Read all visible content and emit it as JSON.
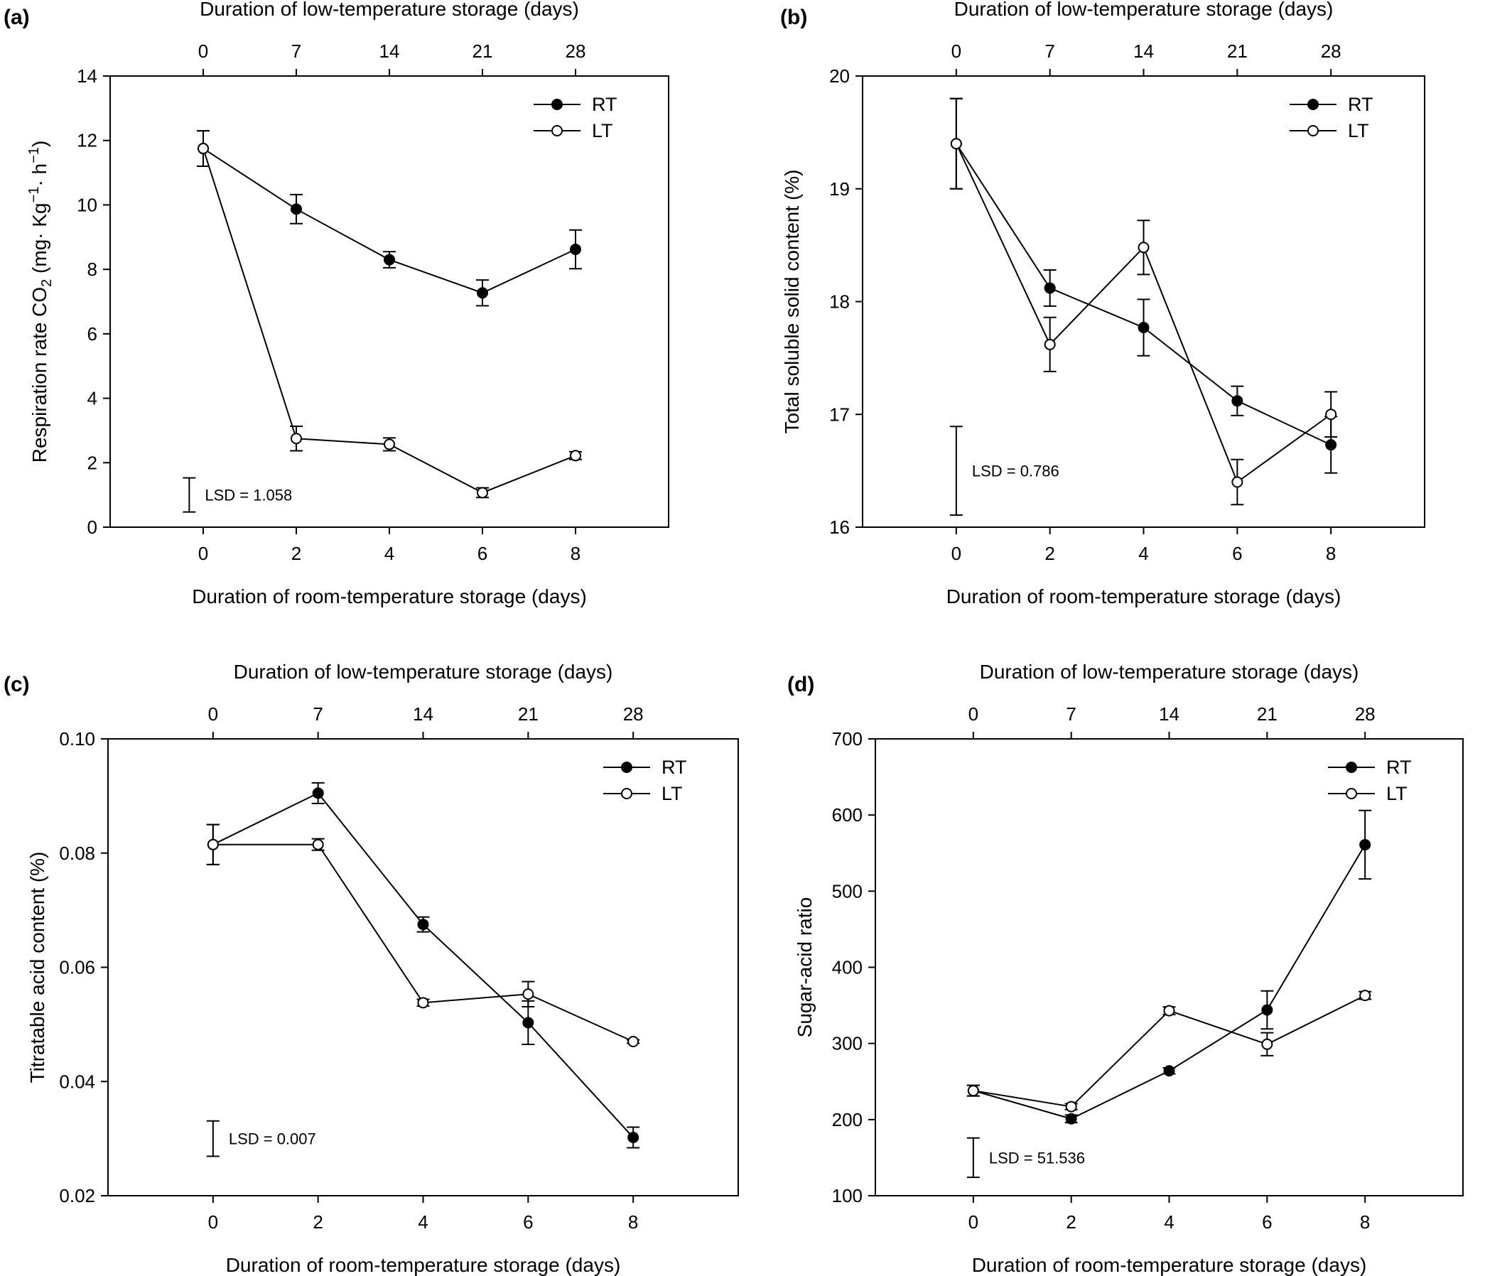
{
  "chart_data": [
    {
      "type": "line",
      "panel_label": "(a)",
      "top_xlabel": "Duration of low-temperature storage (days)",
      "top_ticks": [
        "0",
        "7",
        "14",
        "21",
        "28"
      ],
      "xlabel": "Duration of room-temperature storage (days)",
      "ylabel_parts": [
        "Respiration rate CO",
        "2",
        " (mg· Kg",
        "−1",
        "· h",
        "−1",
        ")"
      ],
      "x": [
        0,
        2,
        4,
        6,
        8
      ],
      "xlim": [
        -2,
        10
      ],
      "ylim": [
        0,
        14
      ],
      "yticks": [
        0,
        2,
        4,
        6,
        8,
        10,
        12,
        14
      ],
      "ytick_labels": [
        "0",
        "2",
        "4",
        "6",
        "8",
        "10",
        "12",
        "14"
      ],
      "series": [
        {
          "name": "RT",
          "marker": "filled",
          "values": [
            11.75,
            9.87,
            8.3,
            7.27,
            8.62
          ],
          "errors": [
            0.55,
            0.45,
            0.25,
            0.4,
            0.6
          ]
        },
        {
          "name": "LT",
          "marker": "open",
          "values": [
            11.75,
            2.75,
            2.57,
            1.07,
            2.22
          ],
          "errors": [
            0.55,
            0.38,
            0.2,
            0.15,
            0.12
          ]
        }
      ],
      "lsd": {
        "label": "LSD = 1.058",
        "x": -0.3,
        "center": 1.0,
        "half": 0.529
      },
      "legend_position": "top-right",
      "grid": false
    },
    {
      "type": "line",
      "panel_label": "(b)",
      "top_xlabel": "Duration of low-temperature storage (days)",
      "top_ticks": [
        "0",
        "7",
        "14",
        "21",
        "28"
      ],
      "xlabel": "Duration of room-temperature storage (days)",
      "ylabel_parts": [
        "Total soluble solid content (%)"
      ],
      "x": [
        0,
        2,
        4,
        6,
        8
      ],
      "xlim": [
        -2,
        10
      ],
      "ylim": [
        16,
        20
      ],
      "yticks": [
        16,
        17,
        18,
        19,
        20
      ],
      "ytick_labels": [
        "16",
        "17",
        "18",
        "19",
        "20"
      ],
      "series": [
        {
          "name": "RT",
          "marker": "filled",
          "values": [
            19.4,
            18.12,
            17.77,
            17.12,
            16.73
          ],
          "errors": [
            0.4,
            0.16,
            0.25,
            0.13,
            0.25
          ]
        },
        {
          "name": "LT",
          "marker": "open",
          "values": [
            19.4,
            17.62,
            18.48,
            16.4,
            17.0
          ],
          "errors": [
            0.4,
            0.24,
            0.24,
            0.2,
            0.2
          ]
        }
      ],
      "lsd": {
        "label": "LSD = 0.786",
        "x": 0,
        "center": 16.5,
        "half": 0.393
      },
      "legend_position": "top-right",
      "grid": false
    },
    {
      "type": "line",
      "panel_label": "(c)",
      "top_xlabel": "Duration of low-temperature storage (days)",
      "top_ticks": [
        "0",
        "7",
        "14",
        "21",
        "28"
      ],
      "xlabel": "Duration of room-temperature storage (days)",
      "ylabel_parts": [
        "Titratable acid content (%)"
      ],
      "x": [
        0,
        2,
        4,
        6,
        8
      ],
      "xlim": [
        -2,
        10
      ],
      "ylim": [
        0.02,
        0.1
      ],
      "yticks": [
        0.02,
        0.04,
        0.06,
        0.08,
        0.1
      ],
      "ytick_labels": [
        "0.02",
        "0.04",
        "0.06",
        "0.08",
        "0.10"
      ],
      "series": [
        {
          "name": "RT",
          "marker": "filled",
          "values": [
            0.0815,
            0.0905,
            0.0675,
            0.0503,
            0.0302
          ],
          "errors": [
            0.0035,
            0.0018,
            0.0013,
            0.0038,
            0.0018
          ]
        },
        {
          "name": "LT",
          "marker": "open",
          "values": [
            0.0815,
            0.0815,
            0.0538,
            0.0553,
            0.047
          ],
          "errors": [
            0.0035,
            0.001,
            0.0006,
            0.0022,
            0.0003
          ]
        }
      ],
      "lsd": {
        "label": "LSD = 0.007",
        "x": 0,
        "center": 0.03,
        "half": 0.0031
      },
      "legend_position": "top-right",
      "grid": false
    },
    {
      "type": "line",
      "panel_label": "(d)",
      "top_xlabel": "Duration of low-temperature storage (days)",
      "top_ticks": [
        "0",
        "7",
        "14",
        "21",
        "28"
      ],
      "xlabel": "Duration of room-temperature storage (days)",
      "ylabel_parts": [
        "Sugar-acid ratio"
      ],
      "x": [
        0,
        2,
        4,
        6,
        8
      ],
      "xlim": [
        -2,
        10
      ],
      "ylim": [
        100,
        700
      ],
      "yticks": [
        100,
        200,
        300,
        400,
        500,
        600,
        700
      ],
      "ytick_labels": [
        "100",
        "200",
        "300",
        "400",
        "500",
        "600",
        "700"
      ],
      "series": [
        {
          "name": "RT",
          "marker": "filled",
          "values": [
            238,
            201,
            264,
            344,
            561
          ],
          "errors": [
            7,
            5,
            4,
            25,
            45
          ]
        },
        {
          "name": "LT",
          "marker": "open",
          "values": [
            238,
            217,
            343,
            299,
            363
          ],
          "errors": [
            7,
            4,
            5,
            15,
            5
          ]
        }
      ],
      "lsd": {
        "label": "LSD = 51.536",
        "x": 0,
        "center": 150,
        "half": 25.8
      },
      "legend_position": "top-right",
      "grid": false
    }
  ]
}
